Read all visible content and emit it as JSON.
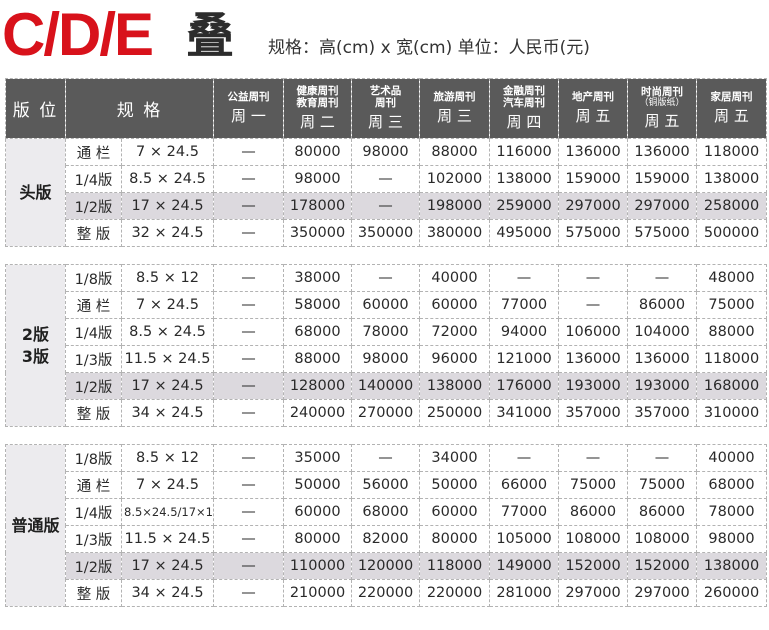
{
  "header": {
    "title_latin": "C/D/E",
    "title_cjk": "叠",
    "subtitle": "规格：高(cm) x 宽(cm)  单位：人民币(元)"
  },
  "columns": {
    "edition": "版 位",
    "spec": "规 格",
    "pubs": [
      {
        "name": "公益周刊",
        "note": "",
        "day": "周 一"
      },
      {
        "name": "健康周刊\n教育周刊",
        "note": "",
        "day": "周 二"
      },
      {
        "name": "艺术品\n周刊",
        "note": "",
        "day": "周 三"
      },
      {
        "name": "旅游周刊",
        "note": "",
        "day": "周 三"
      },
      {
        "name": "金融周刊\n汽车周刊",
        "note": "",
        "day": "周 四"
      },
      {
        "name": "地产周刊",
        "note": "",
        "day": "周 五"
      },
      {
        "name": "时尚周刊",
        "note": "（铜版纸）",
        "day": "周 五"
      },
      {
        "name": "家居周刊",
        "note": "",
        "day": "周 五"
      }
    ]
  },
  "groups": [
    {
      "name": "头版",
      "rows": [
        {
          "ver": "通 栏",
          "spec": "7 × 24.5",
          "highlight": false,
          "values": [
            "—",
            "80000",
            "98000",
            "88000",
            "116000",
            "136000",
            "136000",
            "118000"
          ]
        },
        {
          "ver": "1/4版",
          "spec": "8.5 × 24.5",
          "highlight": false,
          "values": [
            "—",
            "98000",
            "—",
            "102000",
            "138000",
            "159000",
            "159000",
            "138000"
          ]
        },
        {
          "ver": "1/2版",
          "spec": "17 × 24.5",
          "highlight": true,
          "values": [
            "—",
            "178000",
            "—",
            "198000",
            "259000",
            "297000",
            "297000",
            "258000"
          ]
        },
        {
          "ver": "整 版",
          "spec": "32 × 24.5",
          "highlight": false,
          "values": [
            "—",
            "350000",
            "350000",
            "380000",
            "495000",
            "575000",
            "575000",
            "500000"
          ]
        }
      ]
    },
    {
      "name": "2版\n3版",
      "rows": [
        {
          "ver": "1/8版",
          "spec": "8.5 × 12",
          "highlight": false,
          "values": [
            "—",
            "38000",
            "—",
            "40000",
            "—",
            "—",
            "—",
            "48000"
          ]
        },
        {
          "ver": "通 栏",
          "spec": "7 × 24.5",
          "highlight": false,
          "values": [
            "—",
            "58000",
            "60000",
            "60000",
            "77000",
            "—",
            "86000",
            "75000"
          ]
        },
        {
          "ver": "1/4版",
          "spec": "8.5 × 24.5",
          "highlight": false,
          "values": [
            "—",
            "68000",
            "78000",
            "72000",
            "94000",
            "106000",
            "104000",
            "88000"
          ]
        },
        {
          "ver": "1/3版",
          "spec": "11.5 × 24.5",
          "highlight": false,
          "values": [
            "—",
            "88000",
            "98000",
            "96000",
            "121000",
            "136000",
            "136000",
            "118000"
          ]
        },
        {
          "ver": "1/2版",
          "spec": "17 × 24.5",
          "highlight": true,
          "values": [
            "—",
            "128000",
            "140000",
            "138000",
            "176000",
            "193000",
            "193000",
            "168000"
          ]
        },
        {
          "ver": "整 版",
          "spec": "34 × 24.5",
          "highlight": false,
          "values": [
            "—",
            "240000",
            "270000",
            "250000",
            "341000",
            "357000",
            "357000",
            "310000"
          ]
        }
      ]
    },
    {
      "name": "普通版",
      "rows": [
        {
          "ver": "1/8版",
          "spec": "8.5 × 12",
          "highlight": false,
          "values": [
            "—",
            "35000",
            "—",
            "34000",
            "—",
            "—",
            "—",
            "40000"
          ]
        },
        {
          "ver": "通 栏",
          "spec": "7 × 24.5",
          "highlight": false,
          "values": [
            "—",
            "50000",
            "56000",
            "50000",
            "66000",
            "75000",
            "75000",
            "68000"
          ]
        },
        {
          "ver": "1/4版",
          "spec": "8.5×24.5/17×12",
          "highlight": false,
          "small": true,
          "values": [
            "—",
            "60000",
            "68000",
            "60000",
            "77000",
            "86000",
            "86000",
            "78000"
          ]
        },
        {
          "ver": "1/3版",
          "spec": "11.5 × 24.5",
          "highlight": false,
          "values": [
            "—",
            "80000",
            "82000",
            "80000",
            "105000",
            "108000",
            "108000",
            "98000"
          ]
        },
        {
          "ver": "1/2版",
          "spec": "17 × 24.5",
          "highlight": true,
          "values": [
            "—",
            "110000",
            "120000",
            "118000",
            "149000",
            "152000",
            "152000",
            "138000"
          ]
        },
        {
          "ver": "整 版",
          "spec": "34 × 24.5",
          "highlight": false,
          "values": [
            "—",
            "210000",
            "220000",
            "220000",
            "281000",
            "297000",
            "297000",
            "260000"
          ]
        }
      ]
    }
  ],
  "colors": {
    "title_red": "#d8121b",
    "header_bg": "#5a5a5a",
    "group_bg": "#ecebee",
    "highlight_bg": "#dcd9de"
  }
}
